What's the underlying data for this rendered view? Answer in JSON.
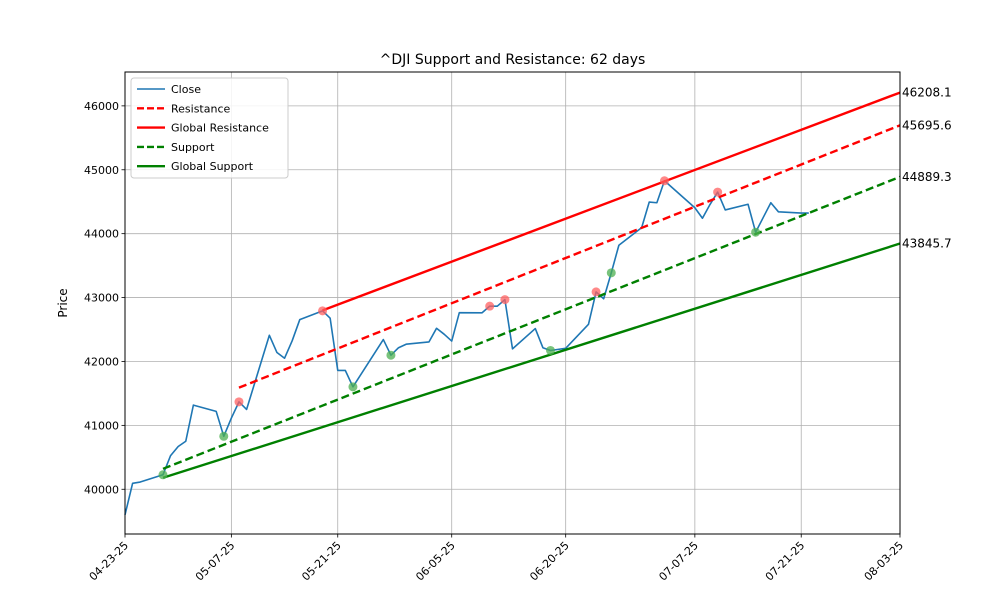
{
  "chart_data": {
    "type": "line",
    "title": "^DJI Support and Resistance: 62 days",
    "xlabel": "",
    "ylabel": "Price",
    "xlim": [
      "2025-04-23",
      "2025-08-03"
    ],
    "ylim": [
      39300,
      46530
    ],
    "grid": true,
    "legend_position": "top-left",
    "x_ticks": [
      "04-23-25",
      "05-07-25",
      "05-21-25",
      "06-05-25",
      "06-20-25",
      "07-07-25",
      "07-21-25",
      "08-03-25"
    ],
    "x_tick_dates": [
      "2025-04-23",
      "2025-05-07",
      "2025-05-21",
      "2025-06-05",
      "2025-06-20",
      "2025-07-07",
      "2025-07-21",
      "2025-08-03"
    ],
    "y_ticks": [
      40000,
      41000,
      42000,
      43000,
      44000,
      45000,
      46000
    ],
    "y_tick_labels": [
      "40000",
      "41000",
      "42000",
      "43000",
      "44000",
      "45000",
      "46000"
    ],
    "legend": [
      {
        "label": "Close",
        "color": "#1f77b4",
        "style": "solid"
      },
      {
        "label": "Resistance",
        "color": "#ff0000",
        "style": "dashed"
      },
      {
        "label": "Global Resistance",
        "color": "#ff0000",
        "style": "solid"
      },
      {
        "label": "Support",
        "color": "#008000",
        "style": "dashed"
      },
      {
        "label": "Global Support",
        "color": "#008000",
        "style": "solid"
      }
    ],
    "close": {
      "color": "#1f77b4",
      "points": [
        [
          "2025-04-23",
          39600
        ],
        [
          "2025-04-24",
          40093
        ],
        [
          "2025-04-25",
          40113
        ],
        [
          "2025-04-28",
          40227
        ],
        [
          "2025-04-29",
          40527
        ],
        [
          "2025-04-30",
          40669
        ],
        [
          "2025-05-01",
          40752
        ],
        [
          "2025-05-02",
          41317
        ],
        [
          "2025-05-05",
          41219
        ],
        [
          "2025-05-06",
          40829
        ],
        [
          "2025-05-07",
          41114
        ],
        [
          "2025-05-08",
          41368
        ],
        [
          "2025-05-09",
          41249
        ],
        [
          "2025-05-12",
          42410
        ],
        [
          "2025-05-13",
          42140
        ],
        [
          "2025-05-14",
          42051
        ],
        [
          "2025-05-15",
          42323
        ],
        [
          "2025-05-16",
          42654
        ],
        [
          "2025-05-19",
          42792
        ],
        [
          "2025-05-20",
          42677
        ],
        [
          "2025-05-21",
          41860
        ],
        [
          "2025-05-22",
          41859
        ],
        [
          "2025-05-23",
          41603
        ],
        [
          "2025-05-27",
          42343
        ],
        [
          "2025-05-28",
          42098
        ],
        [
          "2025-05-29",
          42215
        ],
        [
          "2025-05-30",
          42270
        ],
        [
          "2025-06-02",
          42305
        ],
        [
          "2025-06-03",
          42519
        ],
        [
          "2025-06-04",
          42427
        ],
        [
          "2025-06-05",
          42319
        ],
        [
          "2025-06-06",
          42763
        ],
        [
          "2025-06-09",
          42762
        ],
        [
          "2025-06-10",
          42866
        ],
        [
          "2025-06-11",
          42865
        ],
        [
          "2025-06-12",
          42968
        ],
        [
          "2025-06-13",
          42197
        ],
        [
          "2025-06-16",
          42515
        ],
        [
          "2025-06-17",
          42215
        ],
        [
          "2025-06-18",
          42172
        ],
        [
          "2025-06-20",
          42206
        ],
        [
          "2025-06-23",
          42582
        ],
        [
          "2025-06-24",
          43089
        ],
        [
          "2025-06-25",
          42982
        ],
        [
          "2025-06-26",
          43387
        ],
        [
          "2025-06-27",
          43819
        ],
        [
          "2025-06-30",
          44095
        ],
        [
          "2025-07-01",
          44495
        ],
        [
          "2025-07-02",
          44484
        ],
        [
          "2025-07-03",
          44828
        ],
        [
          "2025-07-07",
          44406
        ],
        [
          "2025-07-08",
          44241
        ],
        [
          "2025-07-09",
          44458
        ],
        [
          "2025-07-10",
          44651
        ],
        [
          "2025-07-11",
          44371
        ],
        [
          "2025-07-14",
          44460
        ],
        [
          "2025-07-15",
          44023
        ],
        [
          "2025-07-16",
          44254
        ],
        [
          "2025-07-17",
          44484
        ],
        [
          "2025-07-18",
          44342
        ],
        [
          "2025-07-21",
          44323
        ],
        [
          "2025-07-22",
          44323
        ]
      ]
    },
    "resistance_points": {
      "color": "#ff6060",
      "points": [
        [
          "2025-05-08",
          41368
        ],
        [
          "2025-05-19",
          42792
        ],
        [
          "2025-06-10",
          42866
        ],
        [
          "2025-06-12",
          42968
        ],
        [
          "2025-06-24",
          43089
        ],
        [
          "2025-07-03",
          44828
        ],
        [
          "2025-07-10",
          44651
        ]
      ]
    },
    "support_points": {
      "color": "#4caf50",
      "points": [
        [
          "2025-04-28",
          40227
        ],
        [
          "2025-05-06",
          40829
        ],
        [
          "2025-05-23",
          41603
        ],
        [
          "2025-05-28",
          42098
        ],
        [
          "2025-06-18",
          42172
        ],
        [
          "2025-06-26",
          43387
        ],
        [
          "2025-07-15",
          44023
        ]
      ]
    },
    "lines": [
      {
        "name": "Resistance",
        "color": "#ff0000",
        "style": "dashed",
        "start": [
          "2025-05-08",
          41590
        ],
        "end": [
          "2025-08-03",
          45695.6
        ]
      },
      {
        "name": "Global Resistance",
        "color": "#ff0000",
        "style": "solid",
        "start": [
          "2025-05-19",
          42800
        ],
        "end": [
          "2025-08-03",
          46208.1
        ]
      },
      {
        "name": "Support",
        "color": "#008000",
        "style": "dashed",
        "start": [
          "2025-04-28",
          40320
        ],
        "end": [
          "2025-08-03",
          44889.3
        ]
      },
      {
        "name": "Global Support",
        "color": "#008000",
        "style": "solid",
        "start": [
          "2025-04-28",
          40180
        ],
        "end": [
          "2025-08-03",
          43845.7
        ]
      }
    ],
    "end_labels": [
      {
        "text": "46208.1",
        "value": 46208.1
      },
      {
        "text": "45695.6",
        "value": 45695.6
      },
      {
        "text": "44889.3",
        "value": 44889.3
      },
      {
        "text": "43845.7",
        "value": 43845.7
      }
    ]
  }
}
